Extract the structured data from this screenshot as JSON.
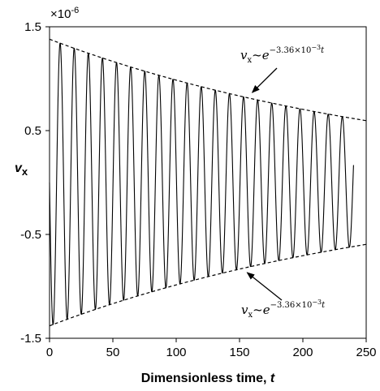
{
  "chart_data": {
    "type": "line",
    "xlabel": "Dimensionless time, t",
    "xlabel_main": "Dimensionless time, ",
    "xlabel_var": "t",
    "ylabel": "vₓ",
    "ylabel_main": "v",
    "ylabel_sub": "x",
    "y_multiplier": "×10",
    "y_multiplier_exp": "-6",
    "xlim": [
      0,
      250
    ],
    "ylim": [
      -1.5,
      1.5
    ],
    "x_ticks": [
      "0",
      "50",
      "100",
      "150",
      "200",
      "250"
    ],
    "y_ticks": [
      "1.5",
      "0.5",
      "-0.5",
      "-1.5"
    ],
    "series": [
      {
        "kind": "damped-oscillation",
        "t_start": 0,
        "t_end": 240,
        "amplitude": 1.38,
        "decay_rate": 0.00336,
        "period": 11.14,
        "start_value": 0,
        "end_value": 0.0
      },
      {
        "kind": "envelope-upper",
        "amplitude": 1.38,
        "decay_rate": 0.00336,
        "t_start": 0,
        "t_end": 250,
        "dashed": true
      },
      {
        "kind": "envelope-lower",
        "amplitude": -1.38,
        "decay_rate": 0.00336,
        "t_start": 0,
        "t_end": 250,
        "dashed": true
      }
    ],
    "annotations": [
      {
        "id": "upper",
        "text_base": "v",
        "text_sub": "x",
        "text_tilde": "~",
        "text_e": "e",
        "text_exp": "−3.36×10",
        "text_exp2": "−3",
        "text_t": "t",
        "arrow_to_t": 160,
        "arrow_to_v": 0.82
      },
      {
        "id": "lower",
        "text_base": "v",
        "text_sub": "x",
        "text_tilde": "~",
        "text_e": "e",
        "text_exp": "−3.36×10",
        "text_exp2": "−3",
        "text_t": "t",
        "arrow_to_t": 156,
        "arrow_to_v": -0.82
      }
    ],
    "grid": false,
    "legend": "none"
  }
}
